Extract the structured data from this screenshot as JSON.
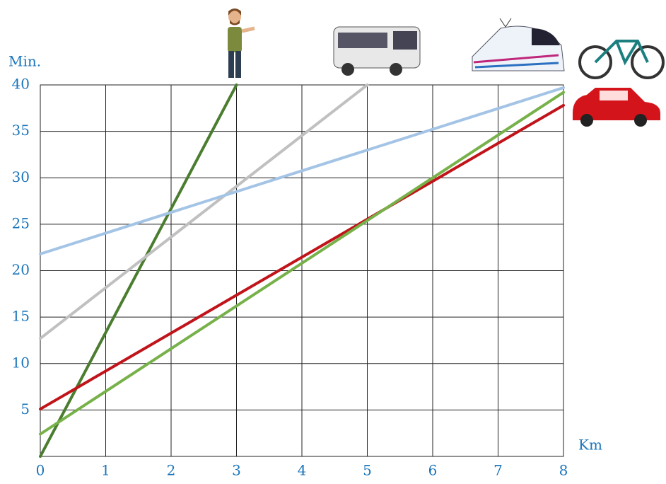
{
  "chart_data": {
    "type": "line",
    "ylabel": "Min.",
    "xlabel": "Km",
    "xlim": [
      0,
      8
    ],
    "ylim": [
      0,
      40
    ],
    "xticks": [
      0,
      1,
      2,
      3,
      4,
      5,
      6,
      7,
      8
    ],
    "yticks": [
      5,
      10,
      15,
      20,
      25,
      30,
      35,
      40
    ],
    "grid": true,
    "series": [
      {
        "color": "#4a7d2f",
        "x": [
          0,
          3
        ],
        "values": [
          0,
          40
        ]
      },
      {
        "color": "#c0c0c0",
        "x": [
          0,
          5
        ],
        "values": [
          12.7,
          40
        ]
      },
      {
        "color": "#a4c4e6",
        "x": [
          0,
          8
        ],
        "values": [
          21.8,
          39.7
        ]
      },
      {
        "color": "#c0141a",
        "x": [
          0,
          8
        ],
        "values": [
          5.1,
          37.8
        ]
      },
      {
        "color": "#77b149",
        "x": [
          0,
          8
        ],
        "values": [
          2.4,
          39.2
        ]
      }
    ]
  }
}
